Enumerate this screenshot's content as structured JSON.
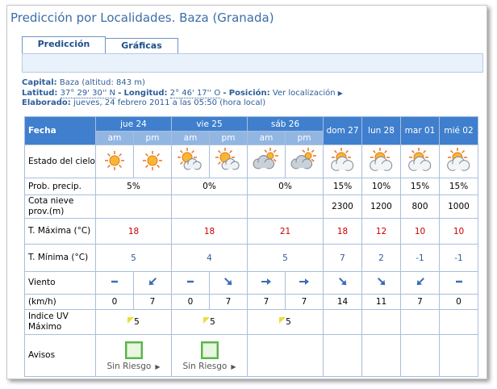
{
  "title": "Predicción por Localidades. Baza (Granada)",
  "tabs": [
    "Predicción",
    "Gráficas"
  ],
  "info": {
    "capital_label": "Capital:",
    "capital": "Baza (altitud: 843 m)",
    "lat_label": "Latitud:",
    "lat": "37° 29' 30'' N",
    "sep": "-",
    "lon_label": "Longitud:",
    "lon": "2° 46' 17'' O",
    "pos_label": "Posición:",
    "pos": "Ver localización",
    "elab_label": "Elaborado:",
    "elab": "jueves, 24 febrero 2011 a las 05:50 (hora local)"
  },
  "table": {
    "fecha": "Fecha",
    "days": [
      "jue 24",
      "vie 25",
      "sáb 26",
      "dom 27",
      "lun 28",
      "mar 01",
      "mié 02"
    ],
    "periods": [
      "am",
      "pm"
    ],
    "sky_label": "Estado del cielo",
    "precip": {
      "label": "Prob. precip.",
      "values": [
        "5%",
        "0%",
        "0%",
        "15%",
        "10%",
        "15%",
        "15%"
      ]
    },
    "snow": {
      "label": "Cota nieve prov.(m)",
      "values": [
        null,
        null,
        null,
        2300,
        1200,
        800,
        1000
      ]
    },
    "tmax": {
      "label": "T. Máxima (°C)",
      "values": [
        18,
        18,
        21,
        18,
        12,
        10,
        10
      ]
    },
    "tmin": {
      "label": "T. Mínima (°C)",
      "values": [
        5,
        4,
        5,
        7,
        2,
        -1,
        -1
      ]
    },
    "wind_label": "Viento",
    "speed": {
      "label": "(km/h)",
      "values": [
        0,
        7,
        0,
        7,
        7,
        7,
        14,
        11,
        7,
        0
      ]
    },
    "uv": {
      "label": "Indice UV Máximo",
      "values": [
        5,
        5,
        5,
        null,
        null,
        null,
        null
      ]
    },
    "avisos": {
      "label": "Avisos",
      "values": [
        "Sin Riesgo",
        "Sin Riesgo",
        null,
        null,
        null,
        null,
        null
      ]
    }
  }
}
